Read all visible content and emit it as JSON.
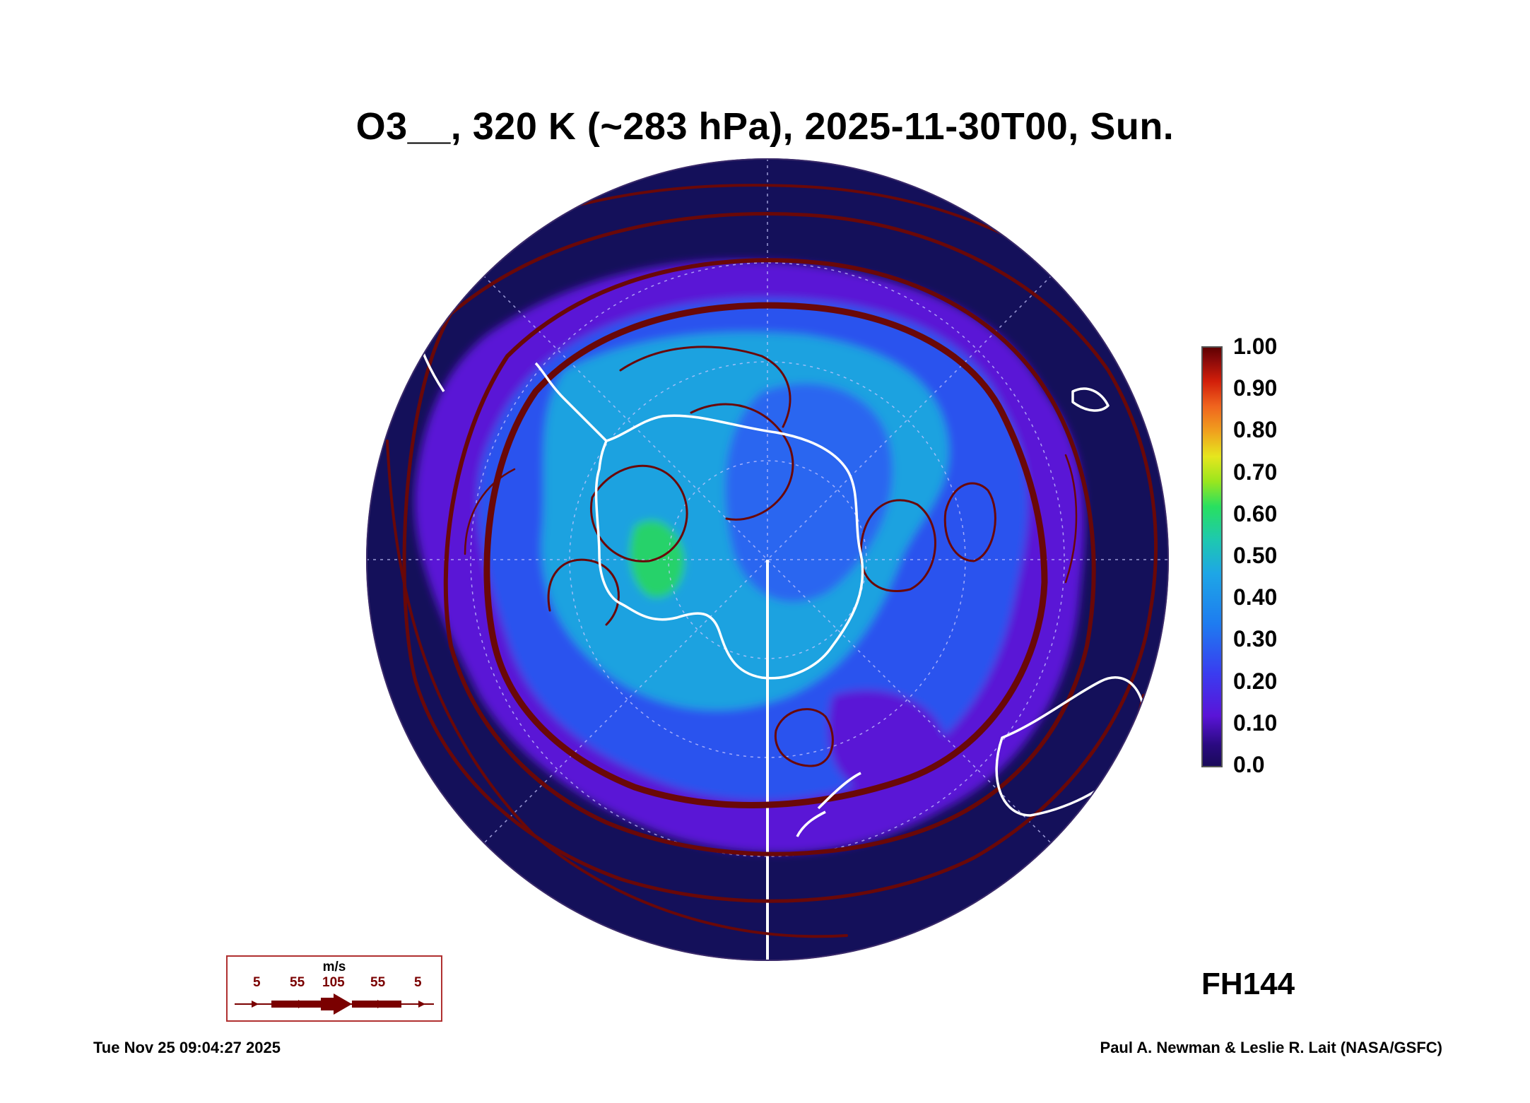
{
  "title": "O3__, 320 K (~283 hPa), 2025-11-30T00, Sun.",
  "colorbar": {
    "ticks": [
      "1.00",
      "0.90",
      "0.80",
      "0.70",
      "0.60",
      "0.50",
      "0.40",
      "0.30",
      "0.20",
      "0.10",
      "0.0"
    ],
    "colors": [
      "#1a0a5a",
      "#5a14d8",
      "#3a3cf0",
      "#1e7cf0",
      "#1ec8b0",
      "#28e060",
      "#e6e61e",
      "#f0641e",
      "#600000"
    ]
  },
  "forecast_hour": "FH144",
  "wind_legend": {
    "unit": "m/s",
    "labels": [
      "5",
      "55",
      "105",
      "55",
      "5"
    ],
    "arrow_color": "#7a0000"
  },
  "map": {
    "projection": "south polar stereographic",
    "ocean_color": "#14105a",
    "streamline_color": "#6a0808",
    "coastline_color": "#ffffff"
  },
  "timestamp": "Tue Nov 25 09:04:27 2025",
  "credit": "Paul A. Newman & Leslie R. Lait (NASA/GSFC)"
}
